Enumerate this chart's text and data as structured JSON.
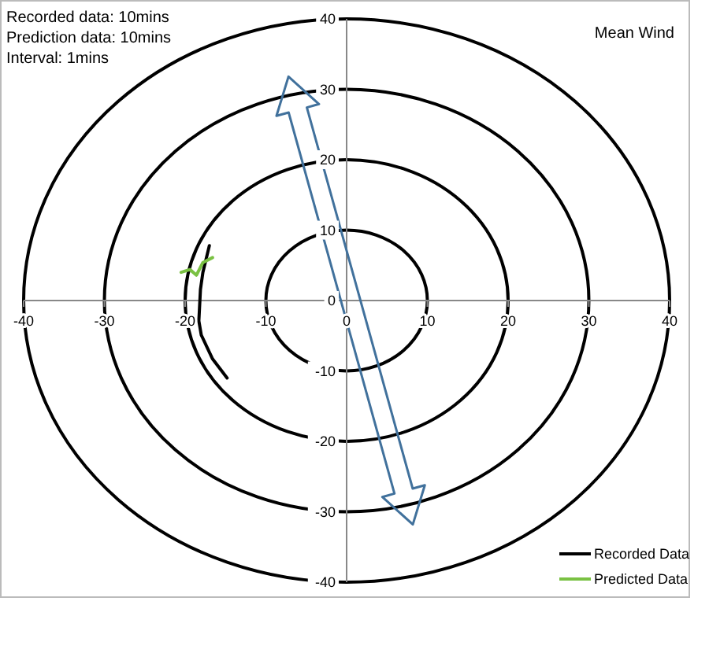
{
  "chart_data": {
    "type": "line",
    "title": "Mean Wind",
    "annotations": [
      "Recorded data: 10mins",
      "Prediction data: 10mins",
      "Interval: 1mins"
    ],
    "series": [
      {
        "name": "Recorded Data",
        "color": "#000000",
        "x": [
          -17.0,
          -17.8,
          -18.1,
          -18.3,
          -18.0,
          -16.6,
          -14.8
        ],
        "values": [
          7.8,
          4.0,
          1.6,
          -2.9,
          -4.9,
          -8.3,
          -11.0
        ]
      },
      {
        "name": "Predicted Data",
        "color": "#7ac143",
        "x": [
          -20.5,
          -19.4,
          -18.6,
          -17.8,
          -16.6
        ],
        "values": [
          4.0,
          4.4,
          3.6,
          5.4,
          6.1
        ]
      }
    ],
    "xlim": [
      -40,
      40
    ],
    "ylim": [
      -40,
      40
    ],
    "xticks": [
      -40,
      -30,
      -20,
      -10,
      0,
      10,
      20,
      30,
      40
    ],
    "yticks": [
      -40,
      -30,
      -20,
      -10,
      0,
      10,
      20,
      30,
      40
    ],
    "legend": "bottom right"
  }
}
